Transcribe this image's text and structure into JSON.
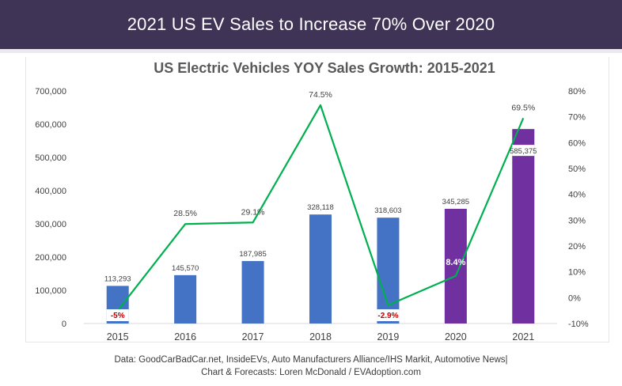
{
  "header": {
    "title": "2021 US EV Sales to Increase 70% Over 2020"
  },
  "footer": {
    "line1": "Data: GoodCarBadCar.net, InsideEVs, Auto Manufacturers Alliance/IHS Markit, Automotive News|",
    "line2": "Chart & Forecasts: Loren McDonald / EVAdoption.com"
  },
  "chart_data": {
    "type": "bar",
    "title": "US Electric Vehicles YOY Sales Growth: 2015-2021",
    "categories": [
      "2015",
      "2016",
      "2017",
      "2018",
      "2019",
      "2020",
      "2021"
    ],
    "series": [
      {
        "kind": "bar",
        "axis": "left",
        "values": [
          113293,
          145570,
          187985,
          328118,
          318603,
          345285,
          585375
        ],
        "value_labels": [
          "113,293",
          "145,570",
          "187,985",
          "328,118",
          "318,603",
          "345,285",
          "585,375"
        ],
        "colors": [
          "#4472c4",
          "#4472c4",
          "#4472c4",
          "#4472c4",
          "#4472c4",
          "#7030a0",
          "#7030a0"
        ]
      },
      {
        "kind": "line",
        "axis": "right",
        "values": [
          -5,
          28.5,
          29.1,
          74.5,
          -2.9,
          8.4,
          69.5
        ],
        "value_labels": [
          "-5%",
          "28.5%",
          "29.1%",
          "74.5%",
          "-2.9%",
          "8.4%",
          "69.5%"
        ],
        "color": "#00b050"
      }
    ],
    "y_left": {
      "lim": [
        0,
        700000
      ],
      "ticks": [
        0,
        100000,
        200000,
        300000,
        400000,
        500000,
        600000,
        700000
      ],
      "tick_labels": [
        "0",
        "100,000",
        "200,000",
        "300,000",
        "400,000",
        "500,000",
        "600,000",
        "700,000"
      ]
    },
    "y_right": {
      "lim": [
        -10,
        80
      ],
      "ticks": [
        -10,
        0,
        10,
        20,
        30,
        40,
        50,
        60,
        70,
        80
      ],
      "tick_labels": [
        "-10%",
        "0%",
        "10%",
        "20%",
        "30%",
        "40%",
        "50%",
        "60%",
        "70%",
        "80%"
      ]
    },
    "grid": false,
    "legend": "none",
    "negative_label_color": "#c00000"
  }
}
